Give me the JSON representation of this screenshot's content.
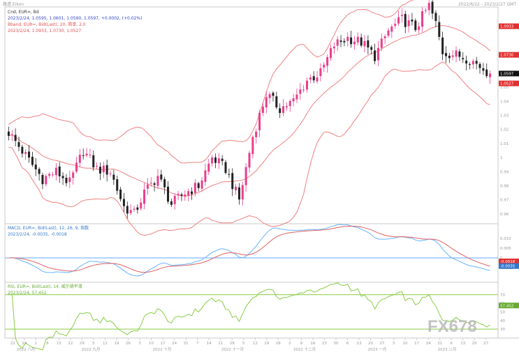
{
  "header": {
    "left_label": "路透 Eikon",
    "right_label": "2022/6/22 - 2023/2/27 GMT"
  },
  "watermark": "FX678",
  "chart_data": [
    {
      "type": "candlestick",
      "panel": "price",
      "legend": [
        {
          "text": "Cnd, EUR=, Bd",
          "color": "#333333"
        },
        {
          "text": "2023/2/24, 1.0595, 1.0601, 1.0590, 1.0597, +0.0002, (+0.02%)",
          "color": "#3344cc"
        },
        {
          "text": "Bband, EUR=, Bid(Last), 20, 简单, 2.0",
          "color": "#e05050"
        },
        {
          "text": "2023/2/24, 1.0933, 1.0730, 1.0527",
          "color": "#e05050"
        }
      ],
      "y_ticks": [
        "1.06",
        "1.05",
        "1.04",
        "1.03",
        "1.02",
        "1.01",
        "1",
        "0.99",
        "0.98",
        "0.97",
        "0.96"
      ],
      "ylim": [
        0.955,
        1.105
      ],
      "price_labels": [
        {
          "text": "1.0933",
          "value": 1.0933,
          "color": "#e03030"
        },
        {
          "text": "1.0730",
          "value": 1.073,
          "color": "#e03030"
        },
        {
          "text": "1.0597",
          "value": 1.0597,
          "color": "#111111"
        },
        {
          "text": "1.0527",
          "value": 1.0527,
          "color": "#e03030"
        }
      ],
      "up_color": "#e83e8c",
      "down_color": "#222222",
      "band_color": "#f08080",
      "close_anchors": [
        [
          0,
          1.018
        ],
        [
          6,
          0.998
        ],
        [
          10,
          0.985
        ],
        [
          14,
          0.99
        ],
        [
          18,
          0.982
        ],
        [
          22,
          1.005
        ],
        [
          26,
          0.992
        ],
        [
          30,
          0.99
        ],
        [
          34,
          0.965
        ],
        [
          37,
          0.96
        ],
        [
          40,
          0.975
        ],
        [
          44,
          0.987
        ],
        [
          48,
          0.967
        ],
        [
          52,
          0.975
        ],
        [
          56,
          0.98
        ],
        [
          60,
          1.0
        ],
        [
          64,
          0.992
        ],
        [
          68,
          0.97
        ],
        [
          72,
          1.015
        ],
        [
          76,
          1.045
        ],
        [
          80,
          1.035
        ],
        [
          84,
          1.04
        ],
        [
          88,
          1.055
        ],
        [
          92,
          1.06
        ],
        [
          96,
          1.08
        ],
        [
          100,
          1.085
        ],
        [
          104,
          1.082
        ],
        [
          108,
          1.072
        ],
        [
          112,
          1.09
        ],
        [
          116,
          1.098
        ],
        [
          120,
          1.092
        ],
        [
          124,
          1.108
        ],
        [
          126,
          1.095
        ],
        [
          128,
          1.075
        ],
        [
          132,
          1.073
        ],
        [
          136,
          1.07
        ],
        [
          140,
          1.063
        ],
        [
          142,
          1.0597
        ]
      ]
    },
    {
      "type": "line",
      "panel": "macd",
      "legend": [
        {
          "text": "MACD, EUR=, Bid(Last), 12, 26, 9, 指数",
          "color": "#3377cc"
        },
        {
          "text": "2023/2/24, -0.0035, -0.0018",
          "color": "#3377cc"
        }
      ],
      "y_ticks": [
        "0.010",
        "0.005",
        "0",
        "-0.005"
      ],
      "ylim": [
        -0.0115,
        0.0165
      ],
      "zero_line_color": "#66aaff",
      "series": [
        {
          "color": "#66b3ff"
        },
        {
          "color": "#e06060"
        }
      ],
      "value_labels": [
        {
          "text": "-0.0018",
          "value": -0.0018,
          "color": "#e03030"
        },
        {
          "text": "-0.0035",
          "value": -0.0035,
          "color": "#3377cc"
        }
      ]
    },
    {
      "type": "line",
      "panel": "rsi",
      "legend": [
        {
          "text": "RSI, EUR=, Bid(Last), 14, 威尔德平滑",
          "color": "#66aa33"
        },
        {
          "text": "2023/2/24, 57.452",
          "color": "#66aa33"
        }
      ],
      "y_ticks": [
        "70",
        "60",
        "50",
        "40",
        "30"
      ],
      "ylim": [
        22,
        82
      ],
      "levels": [
        70,
        30
      ],
      "level_color": "#88cc44",
      "series": [
        {
          "color": "#88cc44"
        }
      ],
      "value_labels": [
        {
          "text": "57.452",
          "value": 57.452,
          "color": "#66aa33"
        }
      ]
    }
  ],
  "x_axis": {
    "day_ticks": [
      "22",
      "29",
      "1",
      "8",
      "15",
      "22",
      "29",
      "5",
      "12",
      "19",
      "26",
      "3",
      "10",
      "17",
      "24",
      "31",
      "7",
      "14",
      "21",
      "28",
      "5",
      "12",
      "19",
      "26",
      "2",
      "9",
      "16",
      "23",
      "30",
      "6",
      "13",
      "20",
      "27",
      "3",
      "10",
      "17",
      "24",
      "31",
      "6",
      "13",
      "20",
      "27"
    ],
    "months": [
      "2022 八月",
      "2022 九月",
      "2022 十月",
      "2022 十一月",
      "2022 十二月",
      "2023 一月",
      "2023 二月"
    ]
  }
}
